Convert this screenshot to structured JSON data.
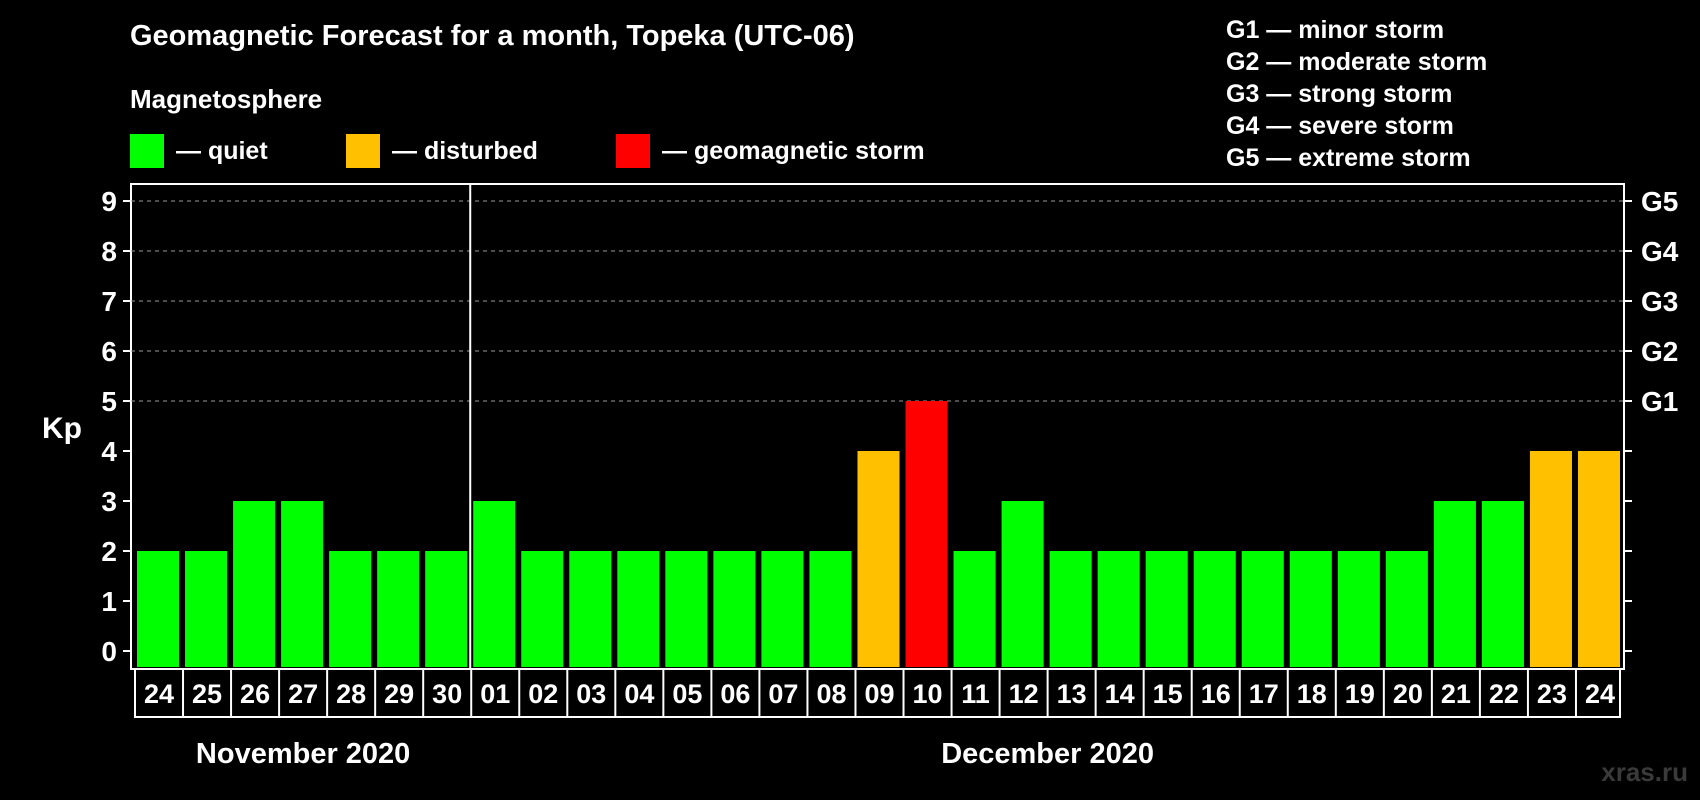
{
  "chart_data": {
    "type": "bar",
    "title": "Geomagnetic Forecast for a month, Topeka (UTC-06)",
    "legend": {
      "title": "Magnetosphere",
      "items": [
        {
          "label": "— quiet",
          "color": "#00ff00"
        },
        {
          "label": "— disturbed",
          "color": "#ffc000"
        },
        {
          "label": "— geomagnetic storm",
          "color": "#ff0000"
        }
      ]
    },
    "storm_levels": [
      "G1 — minor storm",
      "G2 — moderate storm",
      "G3 — strong storm",
      "G4 — severe storm",
      "G5 — extreme storm"
    ],
    "ylabel": "Kp",
    "ylim": [
      0,
      9
    ],
    "yticks": [
      "0",
      "1",
      "2",
      "3",
      "4",
      "5",
      "6",
      "7",
      "8",
      "9"
    ],
    "right_ticks": [
      {
        "kp": 5,
        "label": "G1"
      },
      {
        "kp": 6,
        "label": "G2"
      },
      {
        "kp": 7,
        "label": "G3"
      },
      {
        "kp": 8,
        "label": "G4"
      },
      {
        "kp": 9,
        "label": "G5"
      }
    ],
    "categories": [
      "24",
      "25",
      "26",
      "27",
      "28",
      "29",
      "30",
      "01",
      "02",
      "03",
      "04",
      "05",
      "06",
      "07",
      "08",
      "09",
      "10",
      "11",
      "12",
      "13",
      "14",
      "15",
      "16",
      "17",
      "18",
      "19",
      "20",
      "21",
      "22",
      "23",
      "24"
    ],
    "values": [
      2,
      2,
      3,
      3,
      2,
      2,
      2,
      3,
      2,
      2,
      2,
      2,
      2,
      2,
      2,
      4,
      5,
      2,
      3,
      2,
      2,
      2,
      2,
      2,
      2,
      2,
      2,
      3,
      3,
      4,
      4
    ],
    "colors": {
      "quiet": "#00ff00",
      "disturbed": "#ffc000",
      "storm": "#ff0000"
    },
    "months": [
      {
        "label": "November 2020",
        "days": 7
      },
      {
        "label": "December 2020",
        "days": 24
      }
    ],
    "grid": true
  },
  "watermark": "xras.ru"
}
